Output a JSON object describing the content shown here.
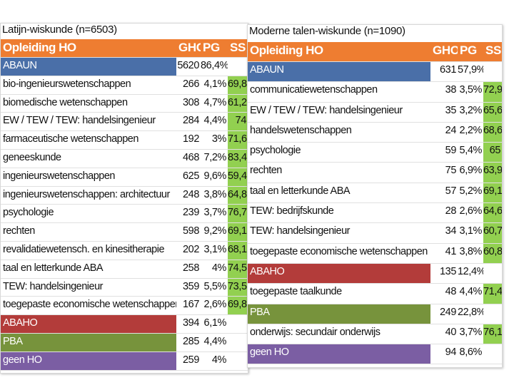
{
  "left": {
    "title": "Latijn-wiskunde (n=6503)",
    "header": {
      "name": "Opleiding HO",
      "gho": "GHO",
      "pg": "PG",
      "ss": "SS"
    },
    "rows": [
      {
        "name": "ABAUN",
        "gho": "5620",
        "pg": "86,4%",
        "ss": "",
        "kind": "abaun"
      },
      {
        "name": "bio-ingenieurswetenschappen",
        "gho": "266",
        "pg": "4,1%",
        "ss": "69,8",
        "kind": "normal"
      },
      {
        "name": "biomedische wetenschappen",
        "gho": "308",
        "pg": "4,7%",
        "ss": "61,2",
        "kind": "normal"
      },
      {
        "name": "EW / TEW / TEW: handelsingenieur",
        "gho": "284",
        "pg": "4,4%",
        "ss": "74",
        "kind": "normal"
      },
      {
        "name": "farmaceutische wetenschappen",
        "gho": "192",
        "pg": "3%",
        "ss": "71,6",
        "kind": "normal"
      },
      {
        "name": "geneeskunde",
        "gho": "468",
        "pg": "7,2%",
        "ss": "83,4",
        "kind": "normal"
      },
      {
        "name": "ingenieurswetenschappen",
        "gho": "625",
        "pg": "9,6%",
        "ss": "59,4",
        "kind": "normal"
      },
      {
        "name": "ingenieurswetenschappen: architectuur",
        "gho": "248",
        "pg": "3,8%",
        "ss": "64,8",
        "kind": "normal"
      },
      {
        "name": "psychologie",
        "gho": "239",
        "pg": "3,7%",
        "ss": "76,7",
        "kind": "normal"
      },
      {
        "name": "rechten",
        "gho": "598",
        "pg": "9,2%",
        "ss": "69,1",
        "kind": "normal"
      },
      {
        "name": "revalidatiewetensch. en kinesitherapie",
        "gho": "202",
        "pg": "3,1%",
        "ss": "68,1",
        "kind": "normal"
      },
      {
        "name": "taal en letterkunde ABA",
        "gho": "258",
        "pg": "4%",
        "ss": "74,5",
        "kind": "normal"
      },
      {
        "name": "TEW: handelsingenieur",
        "gho": "359",
        "pg": "5,5%",
        "ss": "73,5",
        "kind": "normal"
      },
      {
        "name": "toegepaste economische wetenschappen",
        "gho": "167",
        "pg": "2,6%",
        "ss": "69,8",
        "kind": "normal"
      },
      {
        "name": "ABAHO",
        "gho": "394",
        "pg": "6,1%",
        "ss": "",
        "kind": "abaho"
      },
      {
        "name": "PBA",
        "gho": "285",
        "pg": "4,4%",
        "ss": "",
        "kind": "pba"
      },
      {
        "name": "geen HO",
        "gho": "259",
        "pg": "4%",
        "ss": "",
        "kind": "geen"
      }
    ]
  },
  "right": {
    "title": "Moderne talen-wiskunde (n=1090)",
    "header": {
      "name": "Opleiding HO",
      "gho": "GHO",
      "pg": "PG",
      "ss": "SS"
    },
    "rows": [
      {
        "name": "ABAUN",
        "gho": "631",
        "pg": "57,9%",
        "ss": "",
        "kind": "abaun"
      },
      {
        "name": "communicatiewetenschappen",
        "gho": "38",
        "pg": "3,5%",
        "ss": "72,9",
        "kind": "normal"
      },
      {
        "name": "EW / TEW / TEW: handelsingenieur",
        "gho": "35",
        "pg": "3,2%",
        "ss": "65,6",
        "kind": "normal"
      },
      {
        "name": "handelswetenschappen",
        "gho": "24",
        "pg": "2,2%",
        "ss": "68,6",
        "kind": "normal"
      },
      {
        "name": "psychologie",
        "gho": "59",
        "pg": "5,4%",
        "ss": "65",
        "kind": "normal"
      },
      {
        "name": "rechten",
        "gho": "75",
        "pg": "6,9%",
        "ss": "63,9",
        "kind": "normal"
      },
      {
        "name": "taal en letterkunde ABA",
        "gho": "57",
        "pg": "5,2%",
        "ss": "69,1",
        "kind": "normal"
      },
      {
        "name": "TEW: bedrijfskunde",
        "gho": "28",
        "pg": "2,6%",
        "ss": "64,6",
        "kind": "normal"
      },
      {
        "name": "TEW: handelsingenieur",
        "gho": "34",
        "pg": "3,1%",
        "ss": "60,7",
        "kind": "normal"
      },
      {
        "name": "toegepaste economische wetenschappen",
        "gho": "41",
        "pg": "3,8%",
        "ss": "60,8",
        "kind": "normal"
      },
      {
        "name": "ABAHO",
        "gho": "135",
        "pg": "12,4%",
        "ss": "",
        "kind": "abaho"
      },
      {
        "name": "toegepaste taalkunde",
        "gho": "48",
        "pg": "4,4%",
        "ss": "71,4",
        "kind": "normal"
      },
      {
        "name": "PBA",
        "gho": "249",
        "pg": "22,8%",
        "ss": "",
        "kind": "pba"
      },
      {
        "name": "onderwijs: secundair onderwijs",
        "gho": "40",
        "pg": "3,7%",
        "ss": "76,1",
        "kind": "normal"
      },
      {
        "name": "geen HO",
        "gho": "94",
        "pg": "8,6%",
        "ss": "",
        "kind": "geen"
      }
    ]
  },
  "colors": {
    "header": "#ee7d31",
    "abaun": "#4a6fa8",
    "abaho": "#b33c3a",
    "pba": "#77933c",
    "geen": "#7b5ea3",
    "ss_highlight": "#92d050"
  }
}
